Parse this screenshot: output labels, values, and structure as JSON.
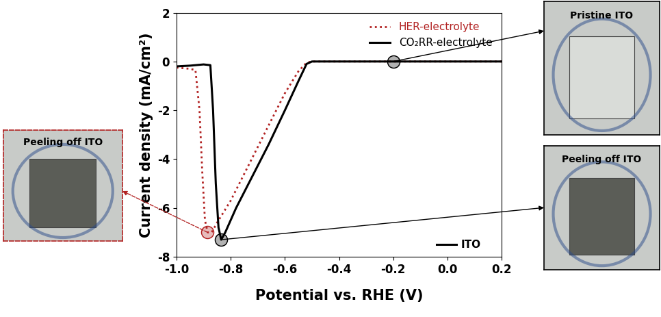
{
  "chart_data": {
    "type": "line",
    "xlabel": "Potential vs. RHE (V)",
    "ylabel": "Current density (mA/cm²)",
    "xlim": [
      -1.0,
      0.2
    ],
    "ylim": [
      -8,
      2
    ],
    "xticks": [
      {
        "value": -1.0,
        "label": "-1.0"
      },
      {
        "value": -0.8,
        "label": "-0.8"
      },
      {
        "value": -0.6,
        "label": "-0.6"
      },
      {
        "value": -0.4,
        "label": "-0.4"
      },
      {
        "value": -0.2,
        "label": "-0.2"
      },
      {
        "value": 0.0,
        "label": "0.0"
      },
      {
        "value": 0.2,
        "label": "0.2"
      }
    ],
    "yticks": [
      -8,
      -6,
      -4,
      -2,
      0,
      2
    ],
    "legend": "upper right",
    "grid": false,
    "note": "ITO",
    "series": [
      {
        "name": "HER-electrolyte",
        "color": "#b22222",
        "line_style": "dotted",
        "x": [
          -1.0,
          -0.95,
          -0.93,
          -0.915,
          -0.905,
          -0.895,
          -0.885,
          -0.87,
          -0.85,
          -0.8,
          -0.75,
          -0.7,
          -0.65,
          -0.6,
          -0.55,
          -0.52,
          -0.5,
          -0.4,
          0.0,
          0.2
        ],
        "values": [
          -0.25,
          -0.3,
          -0.35,
          -2.0,
          -4.5,
          -6.5,
          -7.0,
          -7.0,
          -6.6,
          -5.7,
          -4.6,
          -3.5,
          -2.4,
          -1.3,
          -0.4,
          -0.05,
          0.0,
          0.0,
          0.0,
          0.0
        ]
      },
      {
        "name": "CO₂RR-electrolyte",
        "color": "#000000",
        "line_style": "solid",
        "x": [
          -1.0,
          -0.95,
          -0.9,
          -0.875,
          -0.865,
          -0.855,
          -0.845,
          -0.835,
          -0.82,
          -0.78,
          -0.72,
          -0.66,
          -0.6,
          -0.55,
          -0.52,
          -0.5,
          -0.4,
          -0.2,
          0.0,
          0.2
        ],
        "values": [
          -0.2,
          -0.17,
          -0.12,
          -0.15,
          -2.0,
          -5.0,
          -6.8,
          -7.3,
          -7.0,
          -6.0,
          -4.7,
          -3.4,
          -2.0,
          -0.8,
          -0.1,
          0.0,
          0.0,
          0.0,
          0.0,
          0.0
        ]
      }
    ],
    "annotations": [
      {
        "text": "Pristine ITO",
        "x": -0.2,
        "y": 0,
        "color": "#000000",
        "line_style": "solid"
      },
      {
        "text": "Peeling off ITO",
        "x": -0.835,
        "y": -7.3,
        "color": "#000000",
        "line_style": "solid"
      },
      {
        "text": "Peeling off ITO",
        "x": -0.885,
        "y": -7.0,
        "color": "#b22222",
        "line_style": "dashed"
      }
    ]
  }
}
